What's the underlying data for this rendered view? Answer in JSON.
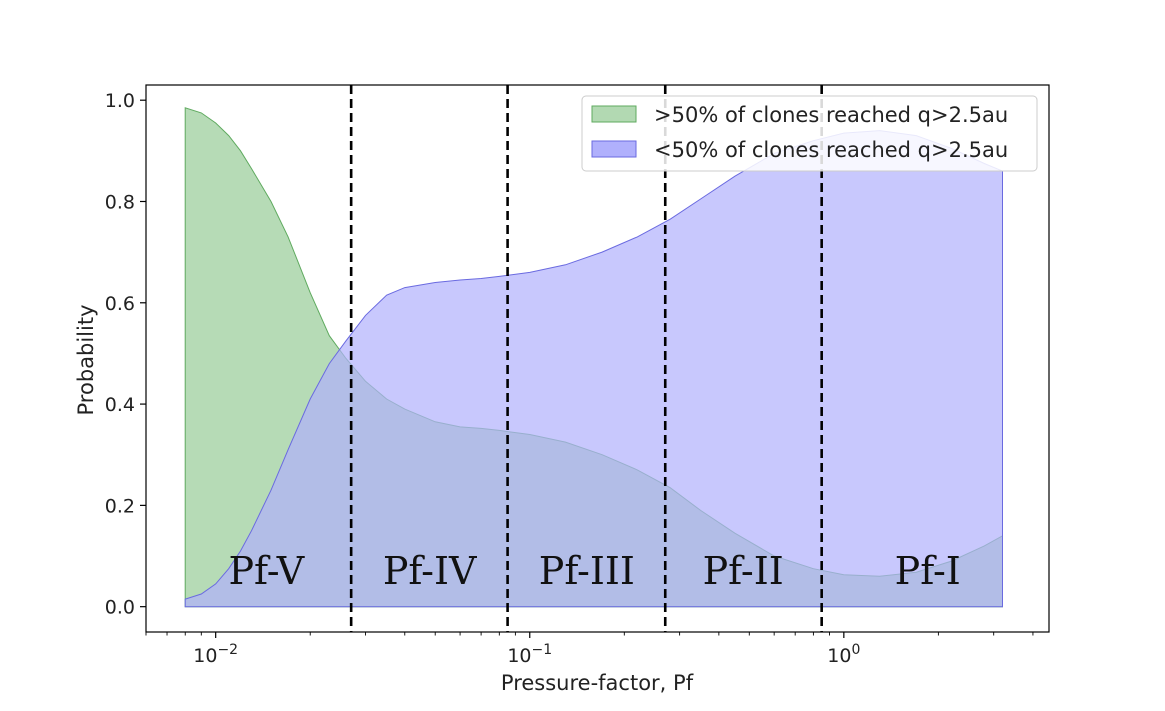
{
  "chart_data": {
    "type": "area",
    "xscale": "log",
    "xlabel": "Pressure-factor, Pf",
    "ylabel": "Probability",
    "xlim": [
      0.006,
      4.5
    ],
    "ylim": [
      -0.05,
      1.03
    ],
    "x_ticks": [
      {
        "value": 0.01,
        "base": "10",
        "exp": "−2"
      },
      {
        "value": 0.1,
        "base": "10",
        "exp": "−1"
      },
      {
        "value": 1,
        "base": "10",
        "exp": "0"
      }
    ],
    "y_ticks": [
      {
        "value": 0.0,
        "label": "0.0"
      },
      {
        "value": 0.2,
        "label": "0.2"
      },
      {
        "value": 0.4,
        "label": "0.4"
      },
      {
        "value": 0.6,
        "label": "0.6"
      },
      {
        "value": 0.8,
        "label": "0.8"
      },
      {
        "value": 1.0,
        "label": "1.0"
      }
    ],
    "legend": {
      "position": "top-right",
      "entries": [
        {
          "label": ">50% of clones reached q>2.5au",
          "color": "#b2d9b2",
          "edge": "#5faa5f"
        },
        {
          "label": "<50% of clones reached q>2.5au",
          "color": "#b0b0fc",
          "edge": "#6a6ae0"
        }
      ]
    },
    "series": [
      {
        "name": ">50% of clones reached q>2.5au",
        "color": "#b2d9b2",
        "x": [
          0.008,
          0.009,
          0.01,
          0.011,
          0.012,
          0.013,
          0.015,
          0.017,
          0.02,
          0.023,
          0.026,
          0.03,
          0.035,
          0.04,
          0.05,
          0.06,
          0.07,
          0.08,
          0.1,
          0.13,
          0.17,
          0.22,
          0.28,
          0.35,
          0.45,
          0.6,
          0.8,
          1.0,
          1.3,
          1.7,
          2.2,
          2.8,
          3.2
        ],
        "values": [
          0.985,
          0.975,
          0.955,
          0.93,
          0.9,
          0.865,
          0.8,
          0.73,
          0.62,
          0.535,
          0.49,
          0.445,
          0.41,
          0.39,
          0.365,
          0.355,
          0.352,
          0.348,
          0.34,
          0.325,
          0.3,
          0.27,
          0.235,
          0.19,
          0.145,
          0.1,
          0.075,
          0.063,
          0.06,
          0.068,
          0.09,
          0.12,
          0.14
        ]
      },
      {
        "name": "<50% of clones reached q>2.5au",
        "color": "#b0b0fc",
        "x": [
          0.008,
          0.009,
          0.01,
          0.011,
          0.012,
          0.013,
          0.015,
          0.017,
          0.02,
          0.023,
          0.026,
          0.03,
          0.035,
          0.04,
          0.05,
          0.06,
          0.07,
          0.08,
          0.1,
          0.13,
          0.17,
          0.22,
          0.28,
          0.35,
          0.45,
          0.6,
          0.8,
          1.0,
          1.3,
          1.7,
          2.2,
          2.8,
          3.2
        ],
        "values": [
          0.015,
          0.025,
          0.045,
          0.075,
          0.11,
          0.15,
          0.23,
          0.31,
          0.41,
          0.48,
          0.525,
          0.575,
          0.615,
          0.63,
          0.64,
          0.645,
          0.648,
          0.652,
          0.66,
          0.675,
          0.7,
          0.73,
          0.765,
          0.805,
          0.85,
          0.895,
          0.92,
          0.935,
          0.94,
          0.93,
          0.905,
          0.875,
          0.86
        ]
      }
    ],
    "boundaries": [
      0.027,
      0.085,
      0.27,
      0.85
    ],
    "regions": [
      {
        "label": "Pf-V",
        "x": 0.0145
      },
      {
        "label": "Pf-IV",
        "x": 0.048
      },
      {
        "label": "Pf-III",
        "x": 0.152
      },
      {
        "label": "Pf-II",
        "x": 0.478
      },
      {
        "label": "Pf-I",
        "x": 1.85
      }
    ],
    "region_label_y": 0.045
  }
}
